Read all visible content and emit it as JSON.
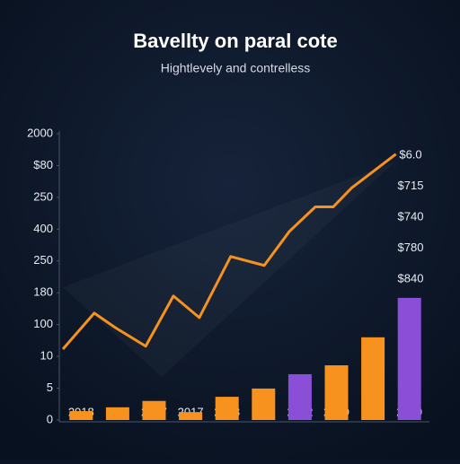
{
  "chart_data": {
    "type": "bar",
    "title": "Bavellty on paral cote",
    "subtitle": "Hightlevely and contrelless",
    "categories": [
      "2018",
      null,
      "2017",
      "2017",
      "2018",
      null,
      "2012",
      "2019",
      null,
      "2019"
    ],
    "values": [
      0.28,
      0.4,
      0.6,
      0.25,
      0.73,
      0.99,
      1.44,
      1.72,
      2.6,
      3.84
    ],
    "colors": [
      "#f7921e",
      "#f7921e",
      "#f7921e",
      "#f7921e",
      "#f7921e",
      "#f7921e",
      "#8a4fd6",
      "#f7921e",
      "#f7921e",
      "#8a4fd6"
    ],
    "line": {
      "color": "#f7921e",
      "x": [
        0,
        0.86,
        1.43,
        2.27,
        3.03,
        3.74,
        4.6,
        5.52,
        6.21,
        6.92,
        7.41,
        7.91,
        9.13
      ],
      "values": [
        2.23,
        3.36,
        2.91,
        2.32,
        3.9,
        3.22,
        5.14,
        4.86,
        5.93,
        6.7,
        6.7,
        7.29,
        8.36
      ]
    },
    "xlim": [
      0,
      10
    ],
    "ylim": [
      0,
      9
    ],
    "yticks": [
      0,
      {
        "value": 1,
        "label": "5"
      },
      {
        "value": 2,
        "label": "10"
      },
      {
        "value": 3,
        "label": "100"
      },
      {
        "value": 4,
        "label": "180"
      },
      {
        "value": 5,
        "label": "250"
      },
      {
        "value": 6,
        "label": "400"
      },
      {
        "value": 7,
        "label": "250"
      },
      {
        "value": 8,
        "label": "$80"
      },
      {
        "value": 9,
        "label": "2000"
      }
    ],
    "annotations": [
      "$6.0",
      "$715",
      "$740",
      "$780",
      "$840"
    ],
    "grid": false
  }
}
